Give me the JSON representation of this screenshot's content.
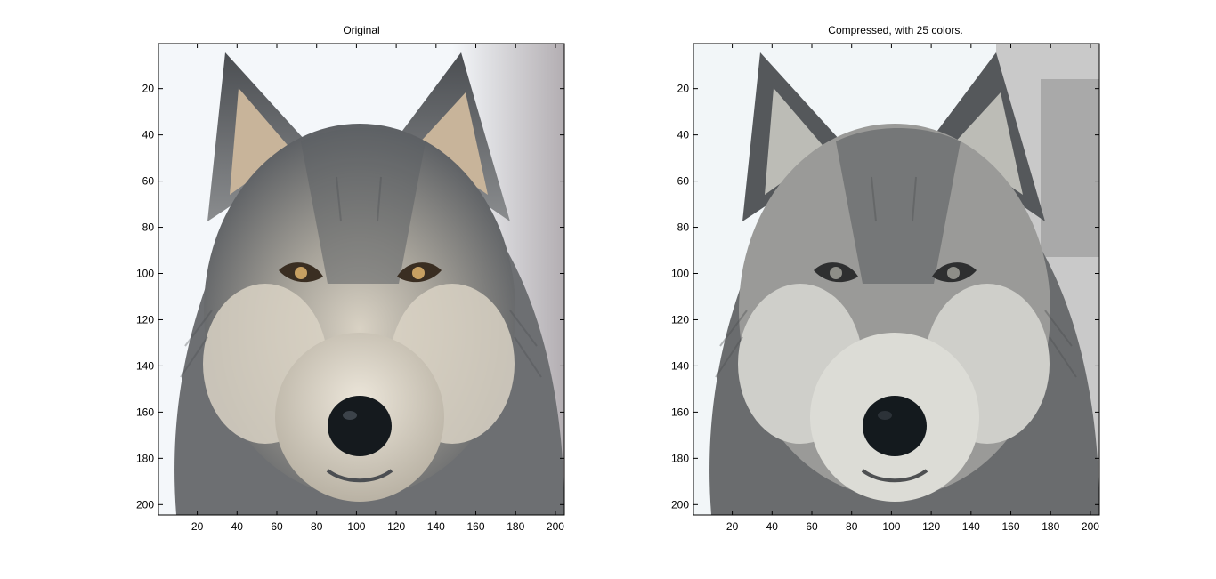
{
  "panels": [
    {
      "title": "Original",
      "palette": "original",
      "x_ticks": [
        "20",
        "40",
        "60",
        "80",
        "100",
        "120",
        "140",
        "160",
        "180",
        "200"
      ],
      "y_ticks": [
        "20",
        "40",
        "60",
        "80",
        "100",
        "120",
        "140",
        "160",
        "180",
        "200"
      ]
    },
    {
      "title": "Compressed, with 25 colors.",
      "palette": "compressed",
      "x_ticks": [
        "20",
        "40",
        "60",
        "80",
        "100",
        "120",
        "140",
        "160",
        "180",
        "200"
      ],
      "y_ticks": [
        "20",
        "40",
        "60",
        "80",
        "100",
        "120",
        "140",
        "160",
        "180",
        "200"
      ]
    }
  ],
  "axes": {
    "x_range": [
      0.5,
      204.5
    ],
    "y_range": [
      0.5,
      204.5
    ],
    "y_direction": "top-down",
    "tick_values": [
      20,
      40,
      60,
      80,
      100,
      120,
      140,
      160,
      180,
      200
    ]
  },
  "colors": {
    "axis": "#000000",
    "background": "#ffffff",
    "snow": "#f4f7fa",
    "fur_dark": "#4b4e52",
    "fur_mid": "#8a8c8e",
    "fur_light": "#d9d2c4",
    "fur_warm": "#c8b49a",
    "nose": "#151a1e"
  }
}
